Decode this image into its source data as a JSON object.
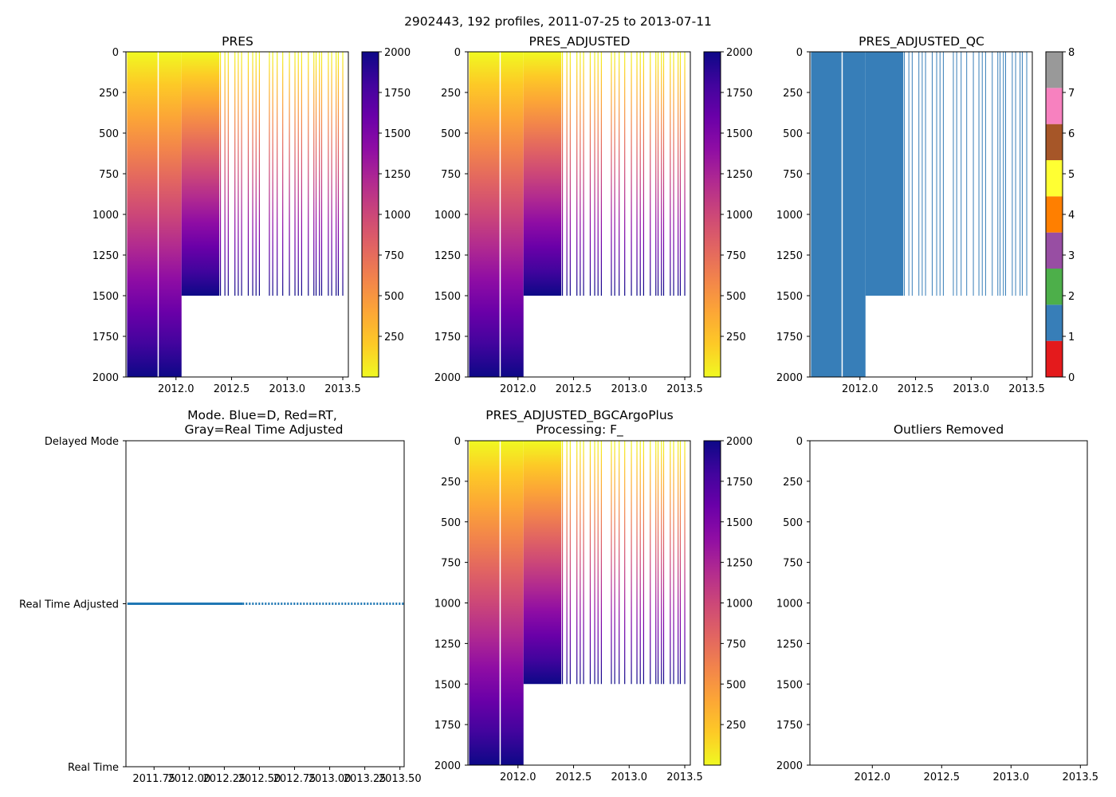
{
  "figure": {
    "suptitle": "2902443, 192 profiles, 2011-07-25 to 2013-07-11"
  },
  "chart_data": [
    {
      "id": "pres",
      "type": "heatmap",
      "title": "PRES",
      "xlim": [
        2011.55,
        2013.55
      ],
      "ylim": [
        2000,
        0
      ],
      "x_ticks": [
        "2012.0",
        "2012.5",
        "2013.0",
        "2013.5"
      ],
      "x_tick_values": [
        2012.0,
        2012.5,
        2013.0,
        2013.5
      ],
      "y_ticks": [
        "0",
        "250",
        "500",
        "750",
        "1000",
        "1250",
        "1500",
        "1750",
        "2000"
      ],
      "y_tick_values": [
        0,
        250,
        500,
        750,
        1000,
        1250,
        1500,
        1750,
        2000
      ],
      "colormap": "plasma_r",
      "colorbar": {
        "range": [
          0,
          2000
        ],
        "ticks": [
          "250",
          "500",
          "750",
          "1000",
          "1250",
          "1500",
          "1750",
          "2000"
        ],
        "tick_values": [
          250,
          500,
          750,
          1000,
          1250,
          1500,
          1750,
          2000
        ]
      }
    },
    {
      "id": "pres_adj",
      "type": "heatmap",
      "title": "PRES_ADJUSTED",
      "xlim": [
        2011.55,
        2013.55
      ],
      "ylim": [
        2000,
        0
      ],
      "x_ticks": [
        "2012.0",
        "2012.5",
        "2013.0",
        "2013.5"
      ],
      "x_tick_values": [
        2012.0,
        2012.5,
        2013.0,
        2013.5
      ],
      "y_ticks": [
        "0",
        "250",
        "500",
        "750",
        "1000",
        "1250",
        "1500",
        "1750",
        "2000"
      ],
      "y_tick_values": [
        0,
        250,
        500,
        750,
        1000,
        1250,
        1500,
        1750,
        2000
      ],
      "colormap": "plasma_r",
      "colorbar": {
        "range": [
          0,
          2000
        ],
        "ticks": [
          "250",
          "500",
          "750",
          "1000",
          "1250",
          "1500",
          "1750",
          "2000"
        ],
        "tick_values": [
          250,
          500,
          750,
          1000,
          1250,
          1500,
          1750,
          2000
        ]
      }
    },
    {
      "id": "pres_qc",
      "type": "heatmap",
      "title": "PRES_ADJUSTED_QC",
      "xlim": [
        2011.55,
        2013.55
      ],
      "ylim": [
        2000,
        0
      ],
      "x_ticks": [
        "2012.0",
        "2012.5",
        "2013.0",
        "2013.5"
      ],
      "x_tick_values": [
        2012.0,
        2012.5,
        2013.0,
        2013.5
      ],
      "y_ticks": [
        "0",
        "250",
        "500",
        "750",
        "1000",
        "1250",
        "1500",
        "1750",
        "2000"
      ],
      "y_tick_values": [
        0,
        250,
        500,
        750,
        1000,
        1250,
        1500,
        1750,
        2000
      ],
      "qc_value": 1,
      "colorbar": {
        "range": [
          0,
          8
        ],
        "ticks": [
          "0",
          "1",
          "2",
          "3",
          "4",
          "5",
          "6",
          "7",
          "8"
        ],
        "tick_values": [
          0,
          1,
          2,
          3,
          4,
          5,
          6,
          7,
          8
        ],
        "colors": [
          "#e41a1c",
          "#377eb8",
          "#4daf4a",
          "#984ea3",
          "#ff7f00",
          "#ffff33",
          "#a65628",
          "#f781bf",
          "#999999"
        ]
      }
    },
    {
      "id": "mode",
      "type": "line",
      "title": "Mode. Blue=D, Red=RT,",
      "title_line2": "Gray=Real Time Adjusted",
      "xlim": [
        2011.55,
        2013.53
      ],
      "x_ticks": [
        "2011.75",
        "2012.00",
        "2012.25",
        "2012.50",
        "2012.75",
        "2013.00",
        "2013.25",
        "2013.50"
      ],
      "x_tick_values": [
        2011.75,
        2012.0,
        2012.25,
        2012.5,
        2012.75,
        2013.0,
        2013.25,
        2013.5
      ],
      "y_categories": [
        "Real Time",
        "Real Time Adjusted",
        "Delayed Mode"
      ],
      "series": [
        {
          "name": "mode",
          "y": "Real Time Adjusted",
          "x_dense": [
            2011.56,
            2012.38
          ],
          "x_sparse_start": 2012.38,
          "x_sparse_end": 2013.53,
          "color": "#1f77b4"
        }
      ]
    },
    {
      "id": "pres_bgc",
      "type": "heatmap",
      "title": "PRES_ADJUSTED_BGCArgoPlus",
      "title_line2": "Processing: F_",
      "xlim": [
        2011.55,
        2013.55
      ],
      "ylim": [
        2000,
        0
      ],
      "x_ticks": [
        "2012.0",
        "2012.5",
        "2013.0",
        "2013.5"
      ],
      "x_tick_values": [
        2012.0,
        2012.5,
        2013.0,
        2013.5
      ],
      "y_ticks": [
        "0",
        "250",
        "500",
        "750",
        "1000",
        "1250",
        "1500",
        "1750",
        "2000"
      ],
      "y_tick_values": [
        0,
        250,
        500,
        750,
        1000,
        1250,
        1500,
        1750,
        2000
      ],
      "colormap": "plasma_r",
      "colorbar": {
        "range": [
          0,
          2000
        ],
        "ticks": [
          "250",
          "500",
          "750",
          "1000",
          "1250",
          "1500",
          "1750",
          "2000"
        ],
        "tick_values": [
          250,
          500,
          750,
          1000,
          1250,
          1500,
          1750,
          2000
        ]
      }
    },
    {
      "id": "outliers",
      "type": "scatter",
      "title": "Outliers Removed",
      "xlim": [
        2011.55,
        2013.55
      ],
      "ylim": [
        2000,
        0
      ],
      "x_ticks": [
        "2012.0",
        "2012.5",
        "2013.0",
        "2013.5"
      ],
      "x_tick_values": [
        2012.0,
        2012.5,
        2013.0,
        2013.5
      ],
      "y_ticks": [
        "0",
        "250",
        "500",
        "750",
        "1000",
        "1250",
        "1500",
        "1750",
        "2000"
      ],
      "y_tick_values": [
        0,
        250,
        500,
        750,
        1000,
        1250,
        1500,
        1750,
        2000
      ],
      "points": []
    }
  ],
  "profile_data": {
    "dense_start": 2011.56,
    "dense_end": 2012.39,
    "dense_full_depth_end": 2012.05,
    "dense_shallow_max": 1500,
    "gap_x": 2011.84,
    "sparse_times": [
      2012.4,
      2012.44,
      2012.47,
      2012.53,
      2012.56,
      2012.59,
      2012.65,
      2012.69,
      2012.72,
      2012.75,
      2012.84,
      2012.87,
      2012.91,
      2012.96,
      2013.02,
      2013.07,
      2013.1,
      2013.13,
      2013.19,
      2013.24,
      2013.26,
      2013.29,
      2013.31,
      2013.37,
      2013.4,
      2013.44,
      2013.46,
      2013.5
    ],
    "sparse_max": 1500
  }
}
